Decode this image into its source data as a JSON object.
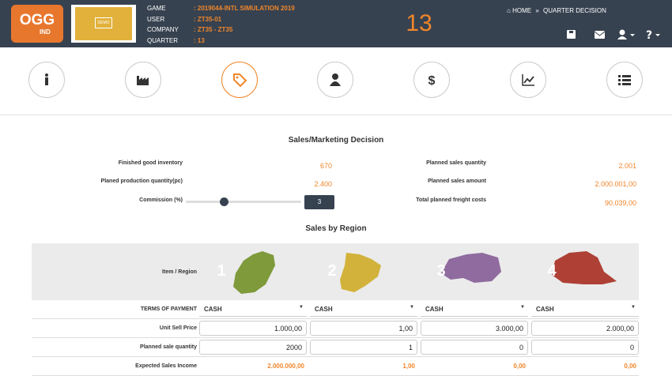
{
  "header": {
    "logo": "OGG",
    "logo_sub": "IND",
    "demo_label": "DEMO",
    "info": [
      {
        "label": "GAME",
        "value": ": 2019044-INTL SIMULATION 2019"
      },
      {
        "label": "USER",
        "value": ": ZT35-01"
      },
      {
        "label": "COMPANY",
        "value": ": ZT35 - ZT35"
      },
      {
        "label": "QUARTER",
        "value": ": 13"
      }
    ],
    "quarter_big": "13",
    "breadcrumb": [
      "HOME",
      "QUARTER DECISION"
    ]
  },
  "form": {
    "title": "Sales/Marketing Decision",
    "left": [
      {
        "label": "Finished good inventory",
        "value": "670"
      },
      {
        "label": "Planed production quantity(pc)",
        "value": "2.400"
      }
    ],
    "commission": {
      "label": "Commission (%)",
      "value": "3"
    },
    "right": [
      {
        "label": "Planned sales quantity",
        "value": "2.001"
      },
      {
        "label": "Planned sales amount",
        "value": "2.000.001,00"
      },
      {
        "label": "Total planned freight costs",
        "value": "90.039,00"
      }
    ]
  },
  "table": {
    "title": "Sales by Region",
    "corner": "Item / Region",
    "regions": [
      "1",
      "2",
      "3",
      "4"
    ],
    "rows": [
      {
        "label": "TERMS OF PAYMENT",
        "cells": [
          "CASH",
          "CASH",
          "CASH",
          "CASH"
        ]
      },
      {
        "label": "Unit Sell Price",
        "cells": [
          "1.000,00",
          "1,00",
          "3.000,00",
          "2.000,00"
        ]
      },
      {
        "label": "Planned sale quantity",
        "cells": [
          "2000",
          "1",
          "0",
          "0"
        ]
      },
      {
        "label": "Expected Sales Income",
        "cells": [
          "2.000.000,00",
          "1,00",
          "0,00",
          "0,00"
        ]
      }
    ]
  }
}
